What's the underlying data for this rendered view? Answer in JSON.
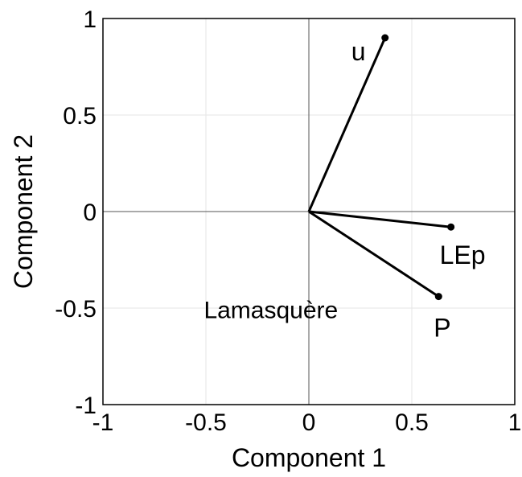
{
  "chart_data": {
    "type": "scatter",
    "title": "",
    "xlabel": "Component 1",
    "ylabel": "Component 2",
    "xlim": [
      -1,
      1
    ],
    "ylim": [
      -1,
      1
    ],
    "xticks": [
      -1,
      -0.5,
      0,
      0.5,
      1
    ],
    "yticks": [
      -1,
      -0.5,
      0,
      0.5,
      1
    ],
    "xtick_labels": [
      "-1",
      "-0.5",
      "0",
      "0.5",
      "1"
    ],
    "ytick_labels": [
      "-1",
      "-0.5",
      "0",
      "0.5",
      "1"
    ],
    "grid": true,
    "series": [
      {
        "points": [
          {
            "label": "u",
            "x": 0.37,
            "y": 0.9
          },
          {
            "label": "LEp",
            "x": 0.69,
            "y": -0.08
          },
          {
            "label": "P",
            "x": 0.63,
            "y": -0.44
          }
        ],
        "vectors_from_origin": true,
        "color": "#000000"
      }
    ],
    "annotations": [
      {
        "text": "Lamasquère",
        "x": -0.51,
        "y": -0.51
      }
    ]
  }
}
